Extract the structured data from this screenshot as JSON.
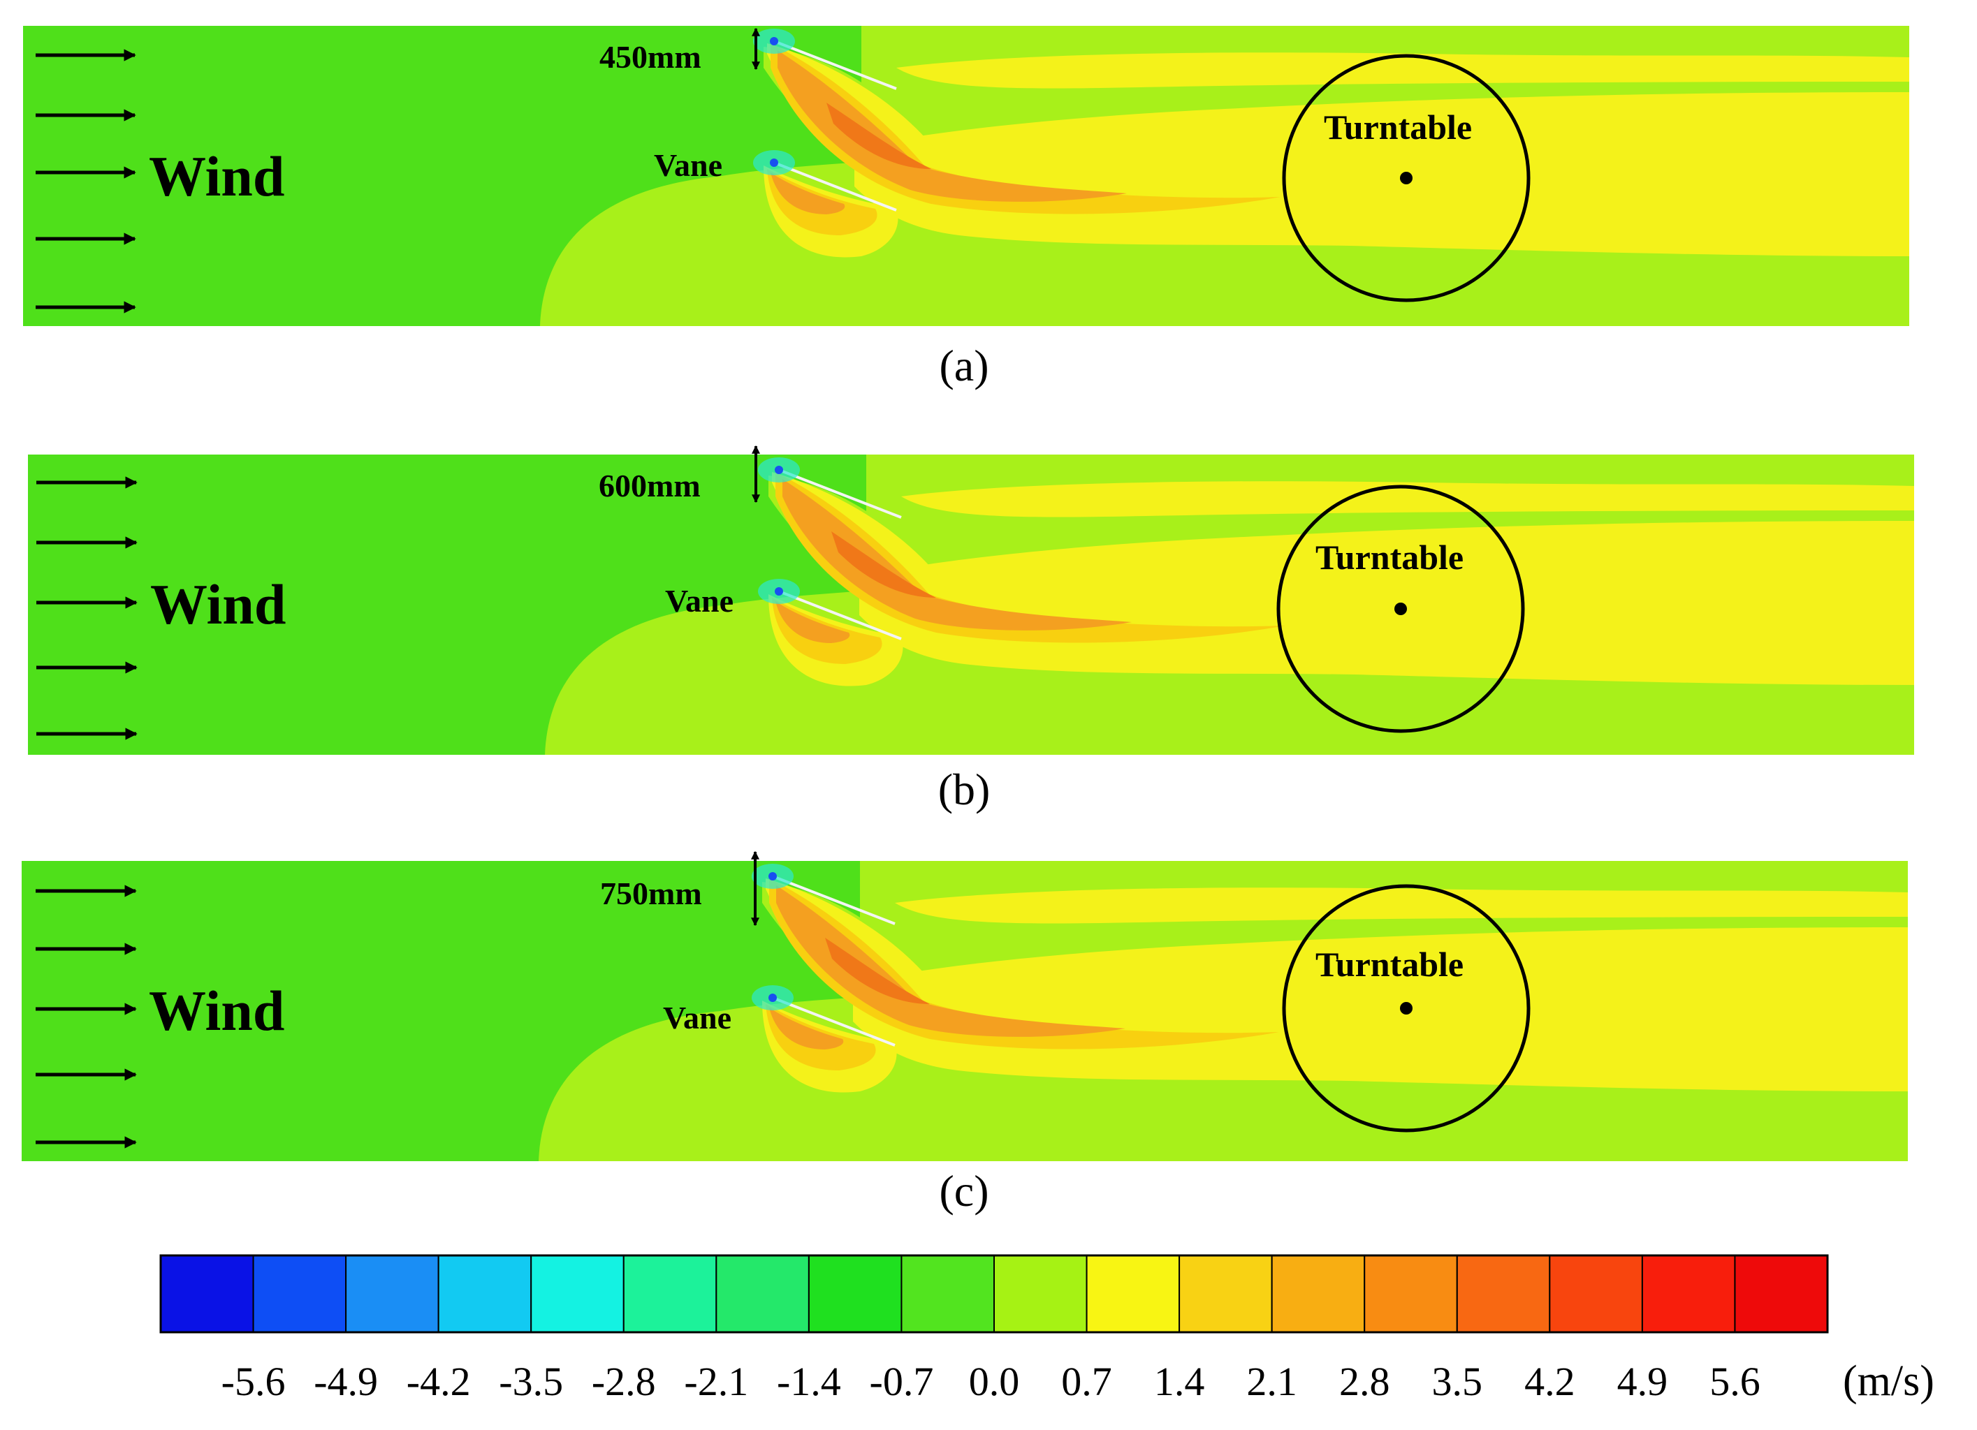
{
  "panels": [
    {
      "gap_label": "450mm",
      "wind_label": "Wind",
      "vane_label": "Vane",
      "turntable_label": "Turntable",
      "caption": "(a)"
    },
    {
      "gap_label": "600mm",
      "wind_label": "Wind",
      "vane_label": "Vane",
      "turntable_label": "Turntable",
      "caption": "(b)"
    },
    {
      "gap_label": "750mm",
      "wind_label": "Wind",
      "vane_label": "Vane",
      "turntable_label": "Turntable",
      "caption": "(c)"
    }
  ],
  "colorbar": {
    "unit": "(m/s)",
    "tick_labels": [
      "-5.6",
      "-4.9",
      "-4.2",
      "-3.5",
      "-2.8",
      "-2.1",
      "-1.4",
      "-0.7",
      "0.0",
      "0.7",
      "1.4",
      "2.1",
      "2.8",
      "3.5",
      "4.2",
      "4.9",
      "5.6"
    ],
    "colors": [
      "#0a12e6",
      "#0e4ef5",
      "#1a8ef5",
      "#12caf2",
      "#14f2e2",
      "#1cf29a",
      "#24e86a",
      "#1fe01f",
      "#52e41f",
      "#a6f214",
      "#f8f513",
      "#f8d214",
      "#f8ae12",
      "#f88c12",
      "#f86812",
      "#f8450e",
      "#f81e0c",
      "#ee0a0a"
    ]
  },
  "colors": {
    "field_base": "#4fe01a",
    "wake_light": "#a8f01a",
    "wake_yellow": "#f4f21a",
    "wake_gold": "#f8d010",
    "wake_orange": "#f4a020",
    "wake_deep": "#f07818",
    "vortex_cyan": "#2ce8d0",
    "vortex_blue": "#1850f0",
    "ink": "#000000"
  }
}
